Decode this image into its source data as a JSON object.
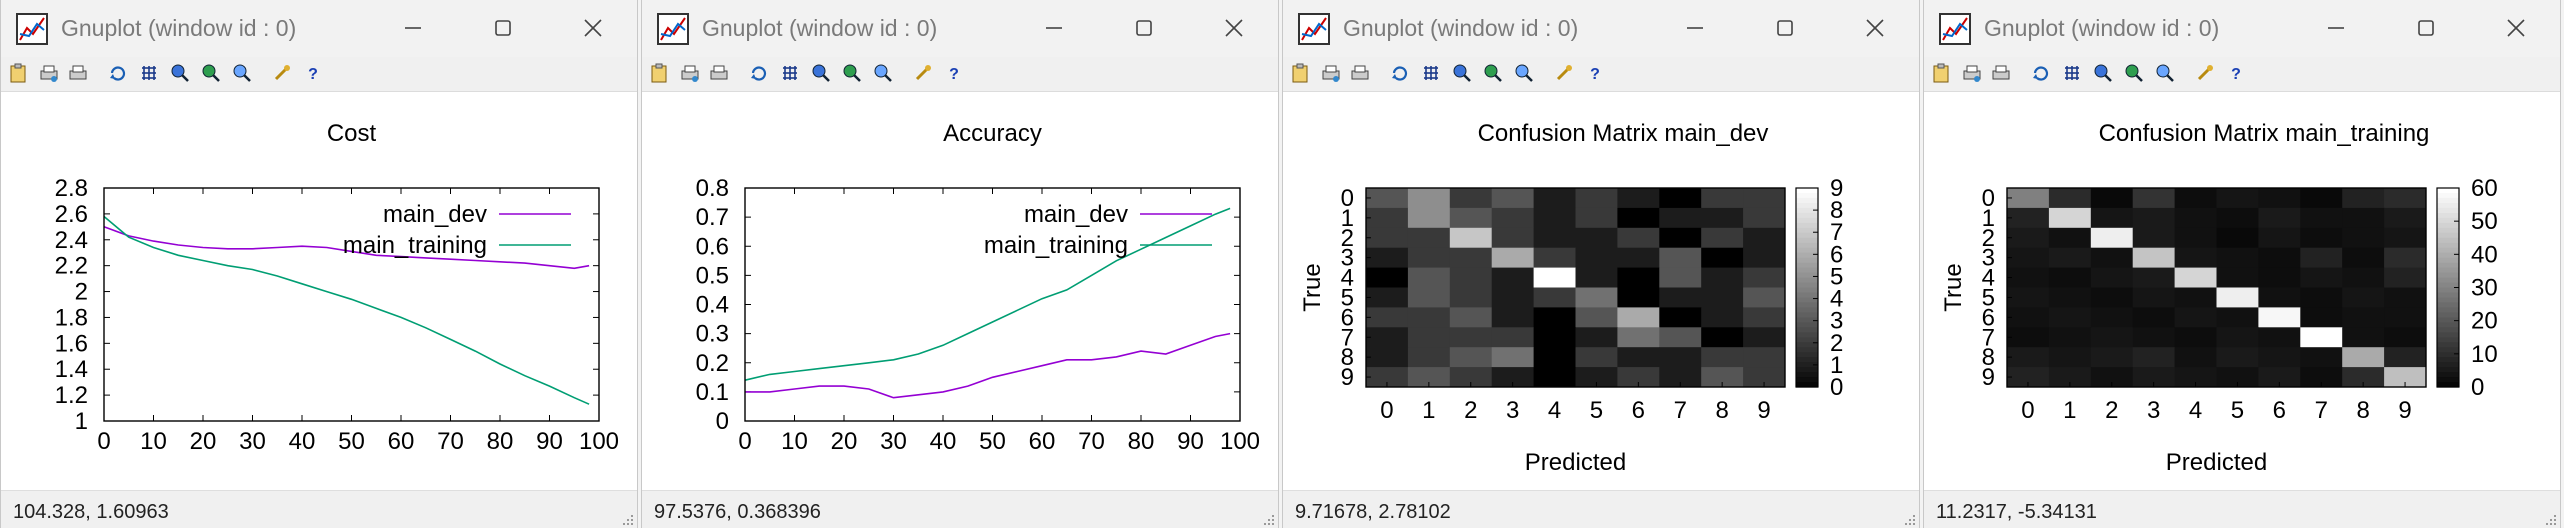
{
  "windows": [
    {
      "title": "Gnuplot (window id : 0)",
      "status": "104.328,  1.60963",
      "chart_data": {
        "type": "line",
        "title": "Cost",
        "xlabel": "",
        "ylabel": "",
        "xlim": [
          0,
          100
        ],
        "ylim": [
          1,
          2.8
        ],
        "x_ticks": [
          "0",
          "10",
          "20",
          "30",
          "40",
          "50",
          "60",
          "70",
          "80",
          "90",
          "100"
        ],
        "y_ticks": [
          "1",
          "1.2",
          "1.4",
          "1.6",
          "1.8",
          "2",
          "2.2",
          "2.4",
          "2.6",
          "2.8"
        ],
        "legend_position": "top-right",
        "series": [
          {
            "name": "main_dev",
            "color": "#9400d3",
            "x": [
              0,
              5,
              10,
              15,
              20,
              25,
              30,
              35,
              40,
              45,
              50,
              55,
              60,
              65,
              70,
              75,
              80,
              85,
              90,
              95,
              98
            ],
            "y": [
              2.5,
              2.43,
              2.39,
              2.36,
              2.34,
              2.33,
              2.33,
              2.34,
              2.35,
              2.34,
              2.31,
              2.28,
              2.27,
              2.26,
              2.25,
              2.24,
              2.23,
              2.22,
              2.2,
              2.18,
              2.2
            ]
          },
          {
            "name": "main_training",
            "color": "#009e73",
            "x": [
              0,
              5,
              10,
              15,
              20,
              25,
              30,
              35,
              40,
              45,
              50,
              55,
              60,
              65,
              70,
              75,
              80,
              85,
              90,
              95,
              98
            ],
            "y": [
              2.58,
              2.42,
              2.34,
              2.28,
              2.24,
              2.2,
              2.17,
              2.12,
              2.06,
              2.0,
              1.94,
              1.87,
              1.8,
              1.72,
              1.63,
              1.54,
              1.44,
              1.35,
              1.27,
              1.18,
              1.13
            ]
          }
        ]
      }
    },
    {
      "title": "Gnuplot (window id : 0)",
      "status": "97.5376,  0.368396",
      "chart_data": {
        "type": "line",
        "title": "Accuracy",
        "xlabel": "",
        "ylabel": "",
        "xlim": [
          0,
          100
        ],
        "ylim": [
          0,
          0.8
        ],
        "x_ticks": [
          "0",
          "10",
          "20",
          "30",
          "40",
          "50",
          "60",
          "70",
          "80",
          "90",
          "100"
        ],
        "y_ticks": [
          "0",
          "0.1",
          "0.2",
          "0.3",
          "0.4",
          "0.5",
          "0.6",
          "0.7",
          "0.8"
        ],
        "legend_position": "top-right",
        "series": [
          {
            "name": "main_dev",
            "color": "#9400d3",
            "x": [
              0,
              5,
              10,
              15,
              20,
              25,
              30,
              35,
              40,
              45,
              50,
              55,
              60,
              65,
              70,
              75,
              80,
              85,
              90,
              95,
              98
            ],
            "y": [
              0.1,
              0.1,
              0.11,
              0.12,
              0.12,
              0.11,
              0.08,
              0.09,
              0.1,
              0.12,
              0.15,
              0.17,
              0.19,
              0.21,
              0.21,
              0.22,
              0.24,
              0.23,
              0.26,
              0.29,
              0.3
            ]
          },
          {
            "name": "main_training",
            "color": "#009e73",
            "x": [
              0,
              5,
              10,
              15,
              20,
              25,
              30,
              35,
              40,
              45,
              50,
              55,
              60,
              65,
              70,
              75,
              80,
              85,
              90,
              95,
              98
            ],
            "y": [
              0.14,
              0.16,
              0.17,
              0.18,
              0.19,
              0.2,
              0.21,
              0.23,
              0.26,
              0.3,
              0.34,
              0.38,
              0.42,
              0.45,
              0.5,
              0.55,
              0.59,
              0.63,
              0.67,
              0.71,
              0.73
            ]
          }
        ]
      }
    },
    {
      "title": "Gnuplot (window id : 0)",
      "status": "9.71678,  2.78102",
      "chart_data": {
        "type": "heatmap",
        "title": "Confusion Matrix main_dev",
        "xlabel": "Predicted",
        "ylabel": "True",
        "x_ticks": [
          "0",
          "1",
          "2",
          "3",
          "4",
          "5",
          "6",
          "7",
          "8",
          "9"
        ],
        "y_ticks": [
          "0",
          "1",
          "2",
          "3",
          "4",
          "5",
          "6",
          "7",
          "8",
          "9"
        ],
        "colorbar_ticks": [
          "0",
          "1",
          "2",
          "3",
          "4",
          "5",
          "6",
          "7",
          "8",
          "9"
        ],
        "zlim": [
          0,
          9
        ],
        "matrix": [
          [
            3,
            5,
            2,
            3,
            1,
            2,
            1,
            0,
            2,
            2
          ],
          [
            2,
            5,
            3,
            2,
            1,
            2,
            0,
            1,
            1,
            2
          ],
          [
            2,
            2,
            7,
            2,
            1,
            1,
            2,
            0,
            2,
            1
          ],
          [
            1,
            2,
            2,
            6,
            2,
            1,
            1,
            3,
            0,
            1
          ],
          [
            0,
            3,
            2,
            1,
            9,
            1,
            0,
            3,
            1,
            2
          ],
          [
            1,
            3,
            2,
            1,
            2,
            4,
            0,
            1,
            1,
            3
          ],
          [
            2,
            2,
            3,
            1,
            0,
            3,
            6,
            0,
            1,
            2
          ],
          [
            1,
            2,
            2,
            2,
            0,
            1,
            4,
            3,
            0,
            1
          ],
          [
            1,
            2,
            3,
            4,
            0,
            2,
            1,
            1,
            2,
            2
          ],
          [
            2,
            3,
            2,
            1,
            0,
            1,
            2,
            1,
            3,
            2
          ]
        ]
      }
    },
    {
      "title": "Gnuplot (window id : 0)",
      "status": "11.2317,  -5.34131",
      "chart_data": {
        "type": "heatmap",
        "title": "Confusion Matrix main_training",
        "xlabel": "Predicted",
        "ylabel": "True",
        "x_ticks": [
          "0",
          "1",
          "2",
          "3",
          "4",
          "5",
          "6",
          "7",
          "8",
          "9"
        ],
        "y_ticks": [
          "0",
          "1",
          "2",
          "3",
          "4",
          "5",
          "6",
          "7",
          "8",
          "9"
        ],
        "colorbar_ticks": [
          "0",
          "10",
          "20",
          "30",
          "40",
          "50",
          "60"
        ],
        "zlim": [
          0,
          60
        ],
        "matrix": [
          [
            30,
            10,
            2,
            12,
            3,
            5,
            4,
            2,
            8,
            10
          ],
          [
            8,
            50,
            5,
            6,
            4,
            3,
            6,
            4,
            4,
            6
          ],
          [
            6,
            4,
            56,
            6,
            4,
            2,
            5,
            3,
            4,
            5
          ],
          [
            5,
            6,
            4,
            46,
            5,
            4,
            3,
            8,
            3,
            10
          ],
          [
            4,
            3,
            5,
            6,
            50,
            4,
            3,
            5,
            4,
            8
          ],
          [
            5,
            4,
            3,
            5,
            4,
            56,
            4,
            3,
            5,
            4
          ],
          [
            4,
            5,
            4,
            3,
            5,
            4,
            58,
            3,
            4,
            4
          ],
          [
            3,
            4,
            5,
            4,
            3,
            5,
            4,
            60,
            4,
            3
          ],
          [
            6,
            5,
            6,
            8,
            4,
            6,
            5,
            4,
            40,
            8
          ],
          [
            8,
            6,
            4,
            6,
            5,
            4,
            6,
            3,
            10,
            45
          ]
        ]
      }
    }
  ],
  "toolbar_icons": [
    "clipboard-icon",
    "print-setup-icon",
    "print-icon",
    "replot-icon",
    "grid-icon",
    "zoom-prev-icon",
    "zoom-next-icon",
    "zoom-autoscale-icon",
    "options-icon",
    "help-icon"
  ],
  "colors": {
    "dev": "#9400d3",
    "training": "#009e73",
    "frame": "#000000"
  }
}
